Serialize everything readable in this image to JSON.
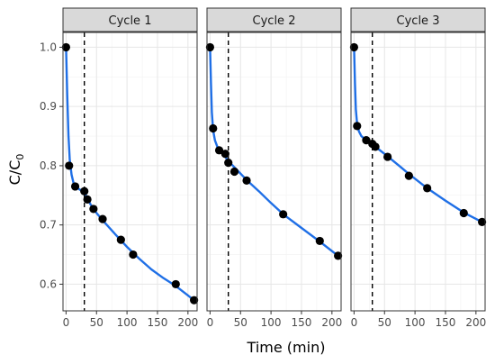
{
  "chart_data": {
    "type": "scatter",
    "xlabel": "Time (min)",
    "ylabel_main": "C/C",
    "ylabel_sub": "0",
    "xlim": [
      -5,
      215
    ],
    "ylim": [
      0.555,
      1.025
    ],
    "xticks": [
      0,
      50,
      100,
      150,
      200
    ],
    "yticks": [
      0.6,
      0.7,
      0.8,
      0.9,
      1.0
    ],
    "ytick_labels": [
      "0.6",
      "0.7",
      "0.8",
      "0.9",
      "1.0"
    ],
    "reference_x": 30,
    "grid": true,
    "colors": {
      "fit_line": "#1f6fe6",
      "points": "#000000",
      "strip": "#d9d9d9"
    },
    "panels": [
      {
        "title": "Cycle 1",
        "points": [
          [
            0,
            1.0
          ],
          [
            5,
            0.8
          ],
          [
            15,
            0.765
          ],
          [
            30,
            0.757
          ],
          [
            35,
            0.743
          ],
          [
            45,
            0.727
          ],
          [
            60,
            0.71
          ],
          [
            90,
            0.675
          ],
          [
            110,
            0.65
          ],
          [
            180,
            0.6
          ],
          [
            210,
            0.573
          ]
        ],
        "fit": [
          [
            0,
            1.0
          ],
          [
            2,
            0.92
          ],
          [
            4,
            0.85
          ],
          [
            6,
            0.81
          ],
          [
            9,
            0.785
          ],
          [
            12,
            0.772
          ],
          [
            15,
            0.765
          ],
          [
            22,
            0.76
          ],
          [
            30,
            0.755
          ],
          [
            40,
            0.735
          ],
          [
            50,
            0.72
          ],
          [
            60,
            0.708
          ],
          [
            80,
            0.685
          ],
          [
            100,
            0.663
          ],
          [
            120,
            0.643
          ],
          [
            140,
            0.625
          ],
          [
            160,
            0.61
          ],
          [
            180,
            0.597
          ],
          [
            195,
            0.585
          ],
          [
            210,
            0.573
          ]
        ]
      },
      {
        "title": "Cycle 2",
        "points": [
          [
            0,
            1.0
          ],
          [
            5,
            0.863
          ],
          [
            15,
            0.826
          ],
          [
            25,
            0.82
          ],
          [
            30,
            0.805
          ],
          [
            40,
            0.79
          ],
          [
            60,
            0.775
          ],
          [
            120,
            0.718
          ],
          [
            180,
            0.673
          ],
          [
            210,
            0.648
          ]
        ],
        "fit": [
          [
            0,
            1.0
          ],
          [
            1.5,
            0.94
          ],
          [
            3,
            0.89
          ],
          [
            5,
            0.86
          ],
          [
            8,
            0.843
          ],
          [
            12,
            0.832
          ],
          [
            20,
            0.822
          ],
          [
            30,
            0.808
          ],
          [
            45,
            0.792
          ],
          [
            60,
            0.776
          ],
          [
            80,
            0.757
          ],
          [
            100,
            0.737
          ],
          [
            120,
            0.718
          ],
          [
            150,
            0.695
          ],
          [
            180,
            0.672
          ],
          [
            210,
            0.648
          ]
        ]
      },
      {
        "title": "Cycle 3",
        "points": [
          [
            0,
            1.0
          ],
          [
            5,
            0.867
          ],
          [
            20,
            0.843
          ],
          [
            30,
            0.837
          ],
          [
            35,
            0.832
          ],
          [
            55,
            0.815
          ],
          [
            90,
            0.783
          ],
          [
            120,
            0.762
          ],
          [
            180,
            0.72
          ],
          [
            210,
            0.705
          ]
        ],
        "fit": [
          [
            0,
            1.0
          ],
          [
            1.5,
            0.94
          ],
          [
            3,
            0.895
          ],
          [
            5,
            0.87
          ],
          [
            8,
            0.858
          ],
          [
            12,
            0.85
          ],
          [
            20,
            0.843
          ],
          [
            30,
            0.836
          ],
          [
            40,
            0.828
          ],
          [
            55,
            0.816
          ],
          [
            75,
            0.799
          ],
          [
            90,
            0.786
          ],
          [
            120,
            0.762
          ],
          [
            150,
            0.741
          ],
          [
            180,
            0.721
          ],
          [
            210,
            0.705
          ]
        ]
      }
    ]
  }
}
